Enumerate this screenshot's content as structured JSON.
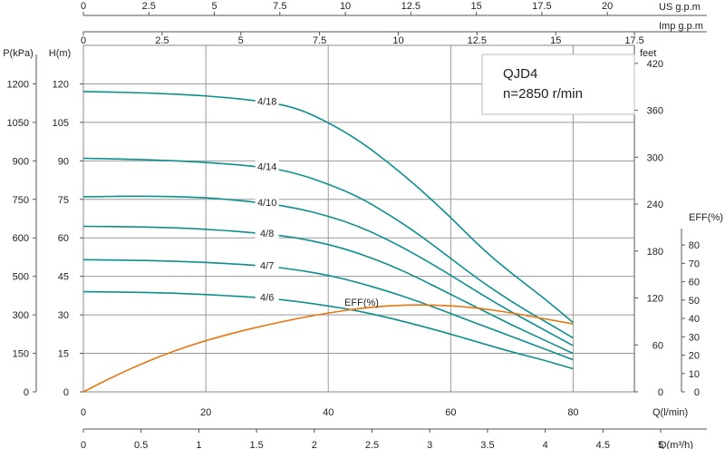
{
  "chart_data": {
    "type": "line",
    "title": "QJD4",
    "subtitle": "n=2850 r/min",
    "x_axes": {
      "q_lpm": {
        "label": "Q(l/min)",
        "range": [
          0,
          90
        ],
        "ticks": [
          0,
          20,
          40,
          60,
          80
        ]
      },
      "q_m3h": {
        "label": "Q(m³/h)",
        "range": [
          0,
          5.4
        ],
        "ticks": [
          0,
          0.5,
          1,
          1.5,
          2,
          2.5,
          3,
          3.5,
          4,
          4.5,
          5
        ]
      },
      "us_gpm": {
        "label": "US  g.p.m",
        "range": [
          0,
          23.8
        ],
        "ticks": [
          0,
          2.5,
          5,
          7.5,
          10,
          12.5,
          15,
          17.5,
          20
        ]
      },
      "imp_gpm": {
        "label": "Imp  g.p.m",
        "range": [
          0,
          19.8
        ],
        "ticks": [
          0,
          2.5,
          5,
          7.5,
          10,
          12.5,
          15,
          17.5
        ]
      }
    },
    "y_axes": {
      "head_m": {
        "label": "H(m)",
        "range": [
          0,
          135
        ],
        "ticks": [
          0,
          15,
          30,
          45,
          60,
          75,
          90,
          105,
          120
        ]
      },
      "pressure_kpa": {
        "label": "P(kPa)",
        "ticks": [
          "0",
          "150",
          "300",
          "500",
          "600",
          "750",
          "900",
          "1050",
          "1200"
        ]
      },
      "feet": {
        "label": "feet",
        "range": [
          0,
          443
        ],
        "ticks": [
          0,
          60,
          120,
          180,
          240,
          300,
          360,
          420
        ]
      },
      "eff_pct": {
        "label": "EFF(%)",
        "range": [
          0,
          85
        ],
        "ticks": [
          0,
          10,
          20,
          30,
          40,
          50,
          60,
          70,
          80
        ]
      }
    },
    "grid": true,
    "series": [
      {
        "name": "4/18",
        "axis": "head_m",
        "color": "#0e8f8f",
        "x": [
          0,
          10,
          20,
          30,
          35,
          40,
          45,
          50,
          55,
          60,
          65,
          70,
          75,
          80
        ],
        "y": [
          117,
          116.5,
          115.5,
          113,
          110.5,
          105,
          98,
          89,
          79,
          68,
          56,
          46,
          37,
          27
        ]
      },
      {
        "name": "4/14",
        "axis": "head_m",
        "color": "#0e8f8f",
        "x": [
          0,
          10,
          20,
          30,
          35,
          40,
          45,
          50,
          55,
          60,
          65,
          70,
          75,
          80
        ],
        "y": [
          91,
          90.5,
          89.5,
          87.5,
          85,
          81,
          76,
          69,
          61,
          52,
          43,
          35,
          28,
          21
        ]
      },
      {
        "name": "4/10",
        "axis": "head_m",
        "color": "#0e8f8f",
        "x": [
          0,
          10,
          20,
          30,
          35,
          40,
          45,
          50,
          55,
          60,
          65,
          70,
          75,
          80
        ],
        "y": [
          76,
          76.3,
          75.8,
          73.5,
          71.5,
          68.5,
          64.5,
          59,
          52.5,
          45.5,
          38,
          31,
          24.5,
          18
        ]
      },
      {
        "name": "4/8",
        "axis": "head_m",
        "color": "#0e8f8f",
        "x": [
          0,
          10,
          20,
          30,
          35,
          40,
          45,
          50,
          55,
          60,
          65,
          70,
          75,
          80
        ],
        "y": [
          64.5,
          64.3,
          63.5,
          61.5,
          60,
          57.5,
          54,
          49.5,
          44,
          38,
          32,
          26,
          20.5,
          15
        ]
      },
      {
        "name": "4/7",
        "axis": "head_m",
        "color": "#0e8f8f",
        "x": [
          0,
          10,
          20,
          30,
          35,
          40,
          45,
          50,
          55,
          60,
          65,
          70,
          75,
          80
        ],
        "y": [
          51.5,
          51.2,
          50.5,
          49,
          47.5,
          45.5,
          42.5,
          39,
          35,
          30.5,
          26,
          21.5,
          17,
          12.5
        ]
      },
      {
        "name": "4/6",
        "axis": "head_m",
        "color": "#0e8f8f",
        "x": [
          0,
          10,
          20,
          30,
          35,
          40,
          45,
          50,
          55,
          60,
          65,
          70,
          75,
          80
        ],
        "y": [
          39,
          38.8,
          38,
          36.5,
          35.2,
          33.5,
          31.5,
          28.8,
          25.8,
          22.5,
          19,
          15.5,
          12.5,
          9
        ]
      },
      {
        "name": "EFF(%)",
        "axis": "eff_pct",
        "color": "#e8760e",
        "x": [
          0,
          5,
          10,
          15,
          20,
          25,
          30,
          35,
          40,
          45,
          50,
          55,
          60,
          65,
          70,
          75,
          80
        ],
        "y": [
          0,
          8.5,
          16,
          22.5,
          28,
          32.5,
          36.5,
          40,
          43,
          45.5,
          47,
          47.5,
          47,
          45.5,
          43,
          40,
          37
        ]
      }
    ],
    "annotations": [
      "4/18",
      "4/14",
      "4/10",
      "4/8",
      "4/7",
      "4/6",
      "EFF(%)"
    ]
  }
}
